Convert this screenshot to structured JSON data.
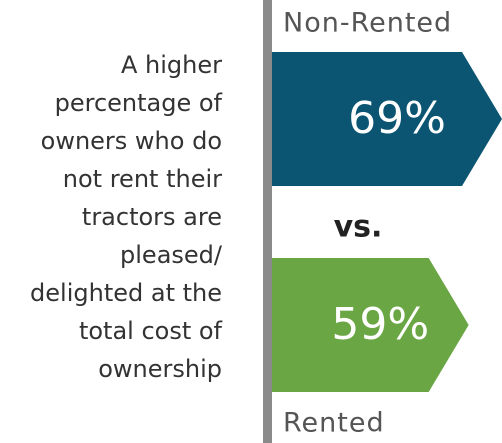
{
  "chart_data": {
    "type": "arrow-bar",
    "annotation": [
      "A higher",
      "percentage of",
      "owners who do",
      "not rent their",
      "tractors are",
      "pleased/",
      "delighted at the",
      "total cost of",
      "ownership"
    ],
    "categories": [
      "Non-Rented",
      "Rented"
    ],
    "values": [
      69,
      59
    ],
    "value_labels": [
      "69%",
      "59%"
    ],
    "colors": [
      "#0b5572",
      "#6aa644"
    ],
    "separator": "vs."
  }
}
